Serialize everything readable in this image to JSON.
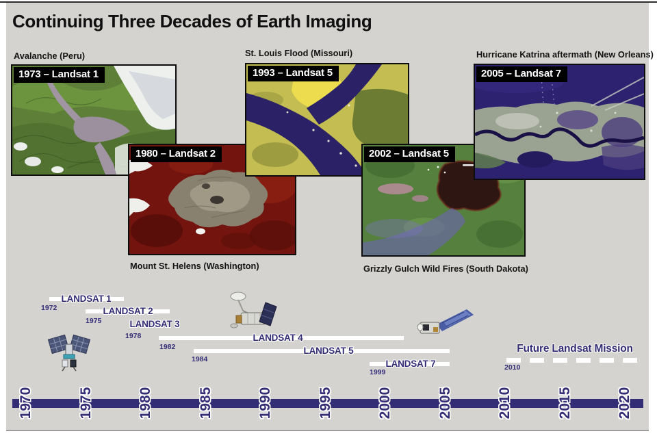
{
  "page": {
    "title": "Continuing Three Decades of Earth Imaging"
  },
  "colors": {
    "background_panel": "#d4d3d0",
    "page_margin": "#ffffff",
    "image_border": "#0d0d0d",
    "badge_bg": "#000000",
    "badge_text": "#ffffff",
    "mission_bar": "#ffffff",
    "mission_label": "#332d76",
    "axis_bar": "#332d76"
  },
  "images": [
    {
      "id": "peru",
      "caption": "Avalanche (Peru)",
      "badge": "1973 – Landsat 1",
      "caption_position": "above"
    },
    {
      "id": "sthelens",
      "caption": "Mount St. Helens (Washington)",
      "badge": "1980 – Landsat 2",
      "caption_position": "below"
    },
    {
      "id": "stlouis",
      "caption": "St. Louis Flood (Missouri)",
      "badge": "1993 – Landsat 5",
      "caption_position": "above"
    },
    {
      "id": "grizzly",
      "caption": "Grizzly Gulch Wild Fires (South Dakota)",
      "badge": "2002 – Landsat 5",
      "caption_position": "below"
    },
    {
      "id": "katrina",
      "caption": "Hurricane Katrina aftermath (New Orleans)",
      "badge": "2005 – Landsat 7",
      "caption_position": "above"
    }
  ],
  "illustrations": [
    "early-landsat-satellite",
    "landsat-4-5-satellite",
    "landsat-7-satellite"
  ],
  "chart_data": {
    "type": "timeline",
    "title": "Landsat mission operational periods",
    "x_axis": {
      "tick_years": [
        1970,
        1975,
        1980,
        1985,
        1990,
        1995,
        2000,
        2005,
        2010,
        2015,
        2020
      ],
      "range": [
        1970,
        2022
      ],
      "orientation": "horizontal",
      "tick_label_rotation": "vertical",
      "grid": false
    },
    "missions": [
      {
        "name": "LANDSAT 1",
        "start_label": "1972",
        "start": 1972,
        "end": 1978
      },
      {
        "name": "LANDSAT 2",
        "start_label": "1975",
        "start": 1975,
        "end": 1982
      },
      {
        "name": "LANDSAT 3",
        "start_label": "1978",
        "start": 1978,
        "end": 1983,
        "bar_visible": false
      },
      {
        "name": "LANDSAT 4",
        "start_label": "1982",
        "start": 1982,
        "end": 2001
      },
      {
        "name": "LANDSAT 5",
        "start_label": "1984",
        "start": 1984,
        "end": 2005
      },
      {
        "name": "LANDSAT 7",
        "start_label": "1999",
        "start": 1999,
        "end": 2005
      },
      {
        "name": "Future Landsat Mission",
        "start_label": "2010",
        "start": 2010,
        "end": 2021,
        "style": "dashed"
      }
    ],
    "legend": "none"
  }
}
